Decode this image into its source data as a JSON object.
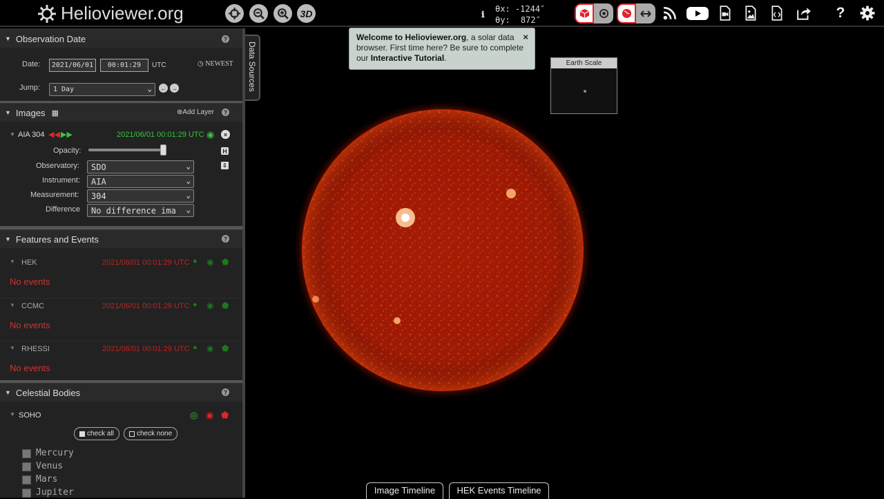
{
  "app": {
    "title": "Helioviewer.org"
  },
  "topbar": {
    "zoom_3d_label": "3D",
    "coords": {
      "theta_x_label": "θx:",
      "theta_x_value": "-1244″",
      "theta_y_label": "θy:",
      "theta_y_value": "872″"
    }
  },
  "sidebar": {
    "observation": {
      "title": "Observation Date",
      "date_label": "Date:",
      "date_value": "2021/06/01",
      "time_value": "00:01:29",
      "utc_label": "UTC",
      "newest_label": "NEWEST",
      "jump_label": "Jump:",
      "jump_value": "1 Day"
    },
    "images": {
      "title": "Images",
      "add_layer_label": "Add Layer",
      "layer": {
        "name": "AIA 304",
        "timestamp": "2021/06/01 00:01:29 UTC",
        "opacity_label": "Opacity:",
        "opacity_value": 0.97,
        "observatory_label": "Observatory:",
        "observatory_value": "SDO",
        "instrument_label": "Instrument:",
        "instrument_value": "AIA",
        "measurement_label": "Measurement:",
        "measurement_value": "304",
        "difference_label": "Difference",
        "difference_value": "No difference ima"
      }
    },
    "features": {
      "title": "Features and Events",
      "sources": [
        {
          "name": "HEK",
          "timestamp": "2021/06/01 00:01:29 UTC",
          "status": "No events"
        },
        {
          "name": "CCMC",
          "timestamp": "2021/06/01 00:01:29 UTC",
          "status": "No events"
        },
        {
          "name": "RHESSI",
          "timestamp": "2021/06/01 00:01:29 UTC",
          "status": "No events"
        }
      ]
    },
    "celestial": {
      "title": "Celestial Bodies",
      "group": "SOHO",
      "check_all_label": "check all",
      "check_none_label": "check none",
      "bodies": [
        "Mercury",
        "Venus",
        "Mars",
        "Jupiter"
      ]
    }
  },
  "data_sources_tab": "Data Sources",
  "welcome": {
    "bold_name": "Welcome to Helioviewer.org",
    "text1": ", a solar data browser. First time here? Be sure to complete our ",
    "tutorial": "Interactive Tutorial",
    "text2": ".",
    "close": "×"
  },
  "earth_scale": {
    "title": "Earth Scale"
  },
  "timeline": {
    "image_label": "Image Timeline",
    "hek_label": "HEK Events Timeline"
  },
  "colors": {
    "accent_red": "#e0242b",
    "event_green": "#1a7a1a",
    "layer_green": "#39c43a"
  }
}
